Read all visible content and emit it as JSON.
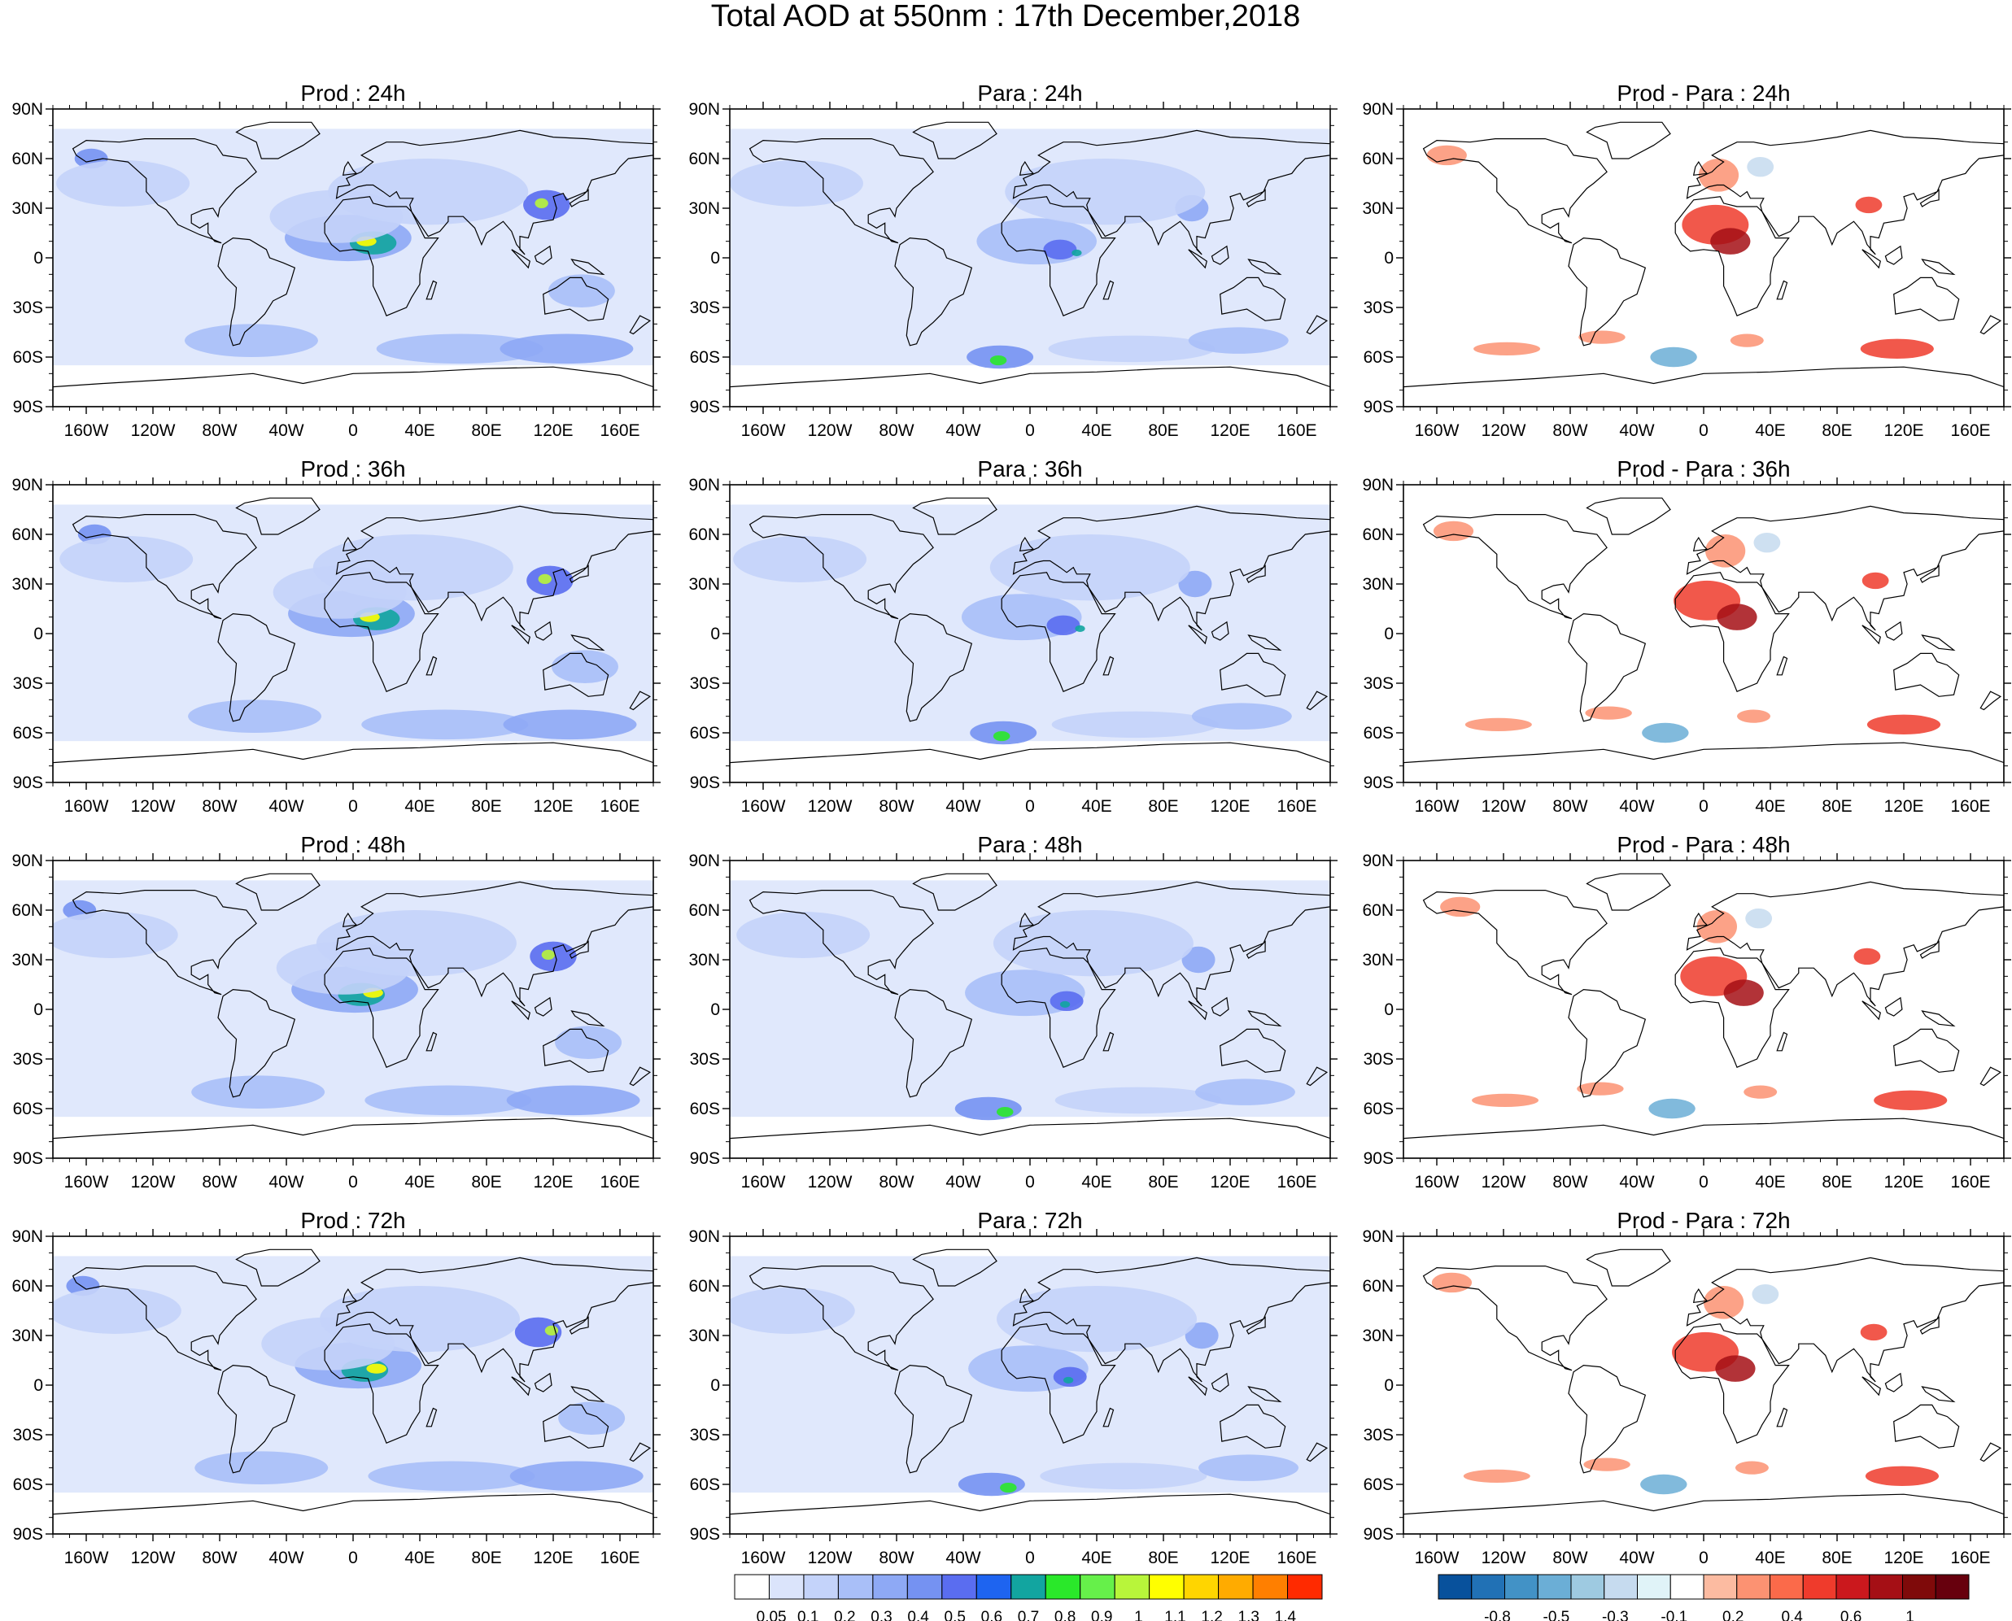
{
  "figure_title": "Total AOD at 550nm : 17th December,2018",
  "panel_titles": [
    [
      "Prod : 24h",
      "Para : 24h",
      "Prod - Para : 24h"
    ],
    [
      "Prod : 36h",
      "Para : 36h",
      "Prod - Para : 36h"
    ],
    [
      "Prod : 48h",
      "Para : 48h",
      "Prod - Para : 48h"
    ],
    [
      "Prod : 72h",
      "Para : 72h",
      "Prod - Para : 72h"
    ]
  ],
  "lat_labels": [
    "90N",
    "60N",
    "30N",
    "0",
    "30S",
    "60S",
    "90S"
  ],
  "lon_labels": [
    "160W",
    "120W",
    "80W",
    "40W",
    "0",
    "40E",
    "80E",
    "120E",
    "160E"
  ],
  "colorbars": {
    "aod": {
      "labels": [
        "0.05",
        "0.1",
        "0.2",
        "0.3",
        "0.4",
        "0.5",
        "0.6",
        "0.7",
        "0.8",
        "0.9",
        "1",
        "1.1",
        "1.2",
        "1.3",
        "1.4"
      ],
      "colors": [
        "#ffffff",
        "#dbe4fb",
        "#c4d3fa",
        "#a9bff8",
        "#8ea9f5",
        "#7592f2",
        "#5a6df0",
        "#1e64f0",
        "#12a5a0",
        "#2ae82a",
        "#66f04a",
        "#b8f53a",
        "#ffff00",
        "#ffd500",
        "#ffab00",
        "#ff7f00",
        "#ff2a00"
      ]
    },
    "diff": {
      "labels": [
        "-0.8",
        "-0.5",
        "-0.3",
        "-0.1",
        "0.2",
        "0.4",
        "0.6",
        "1"
      ],
      "colors": [
        "#08519c",
        "#2171b5",
        "#4292c6",
        "#6baed6",
        "#9ecae1",
        "#c6dbef",
        "#e0f3f8",
        "#ffffff",
        "#fcbba1",
        "#fc9272",
        "#fb6a4a",
        "#ef3b2c",
        "#cb181d",
        "#a50f15",
        "#7f0a0a",
        "#67000d"
      ]
    }
  },
  "map_data": {
    "projection": "cylindrical equidistant (global)",
    "variable": "Total AOD at 550nm",
    "date": "17th December,2018",
    "columns": [
      "Prod",
      "Para",
      "Prod - Para"
    ],
    "forecast_hours": [
      "24h",
      "36h",
      "48h",
      "72h"
    ],
    "colors": {
      "land_outline": "#000000",
      "ocean_fill": "#ffffff"
    }
  }
}
